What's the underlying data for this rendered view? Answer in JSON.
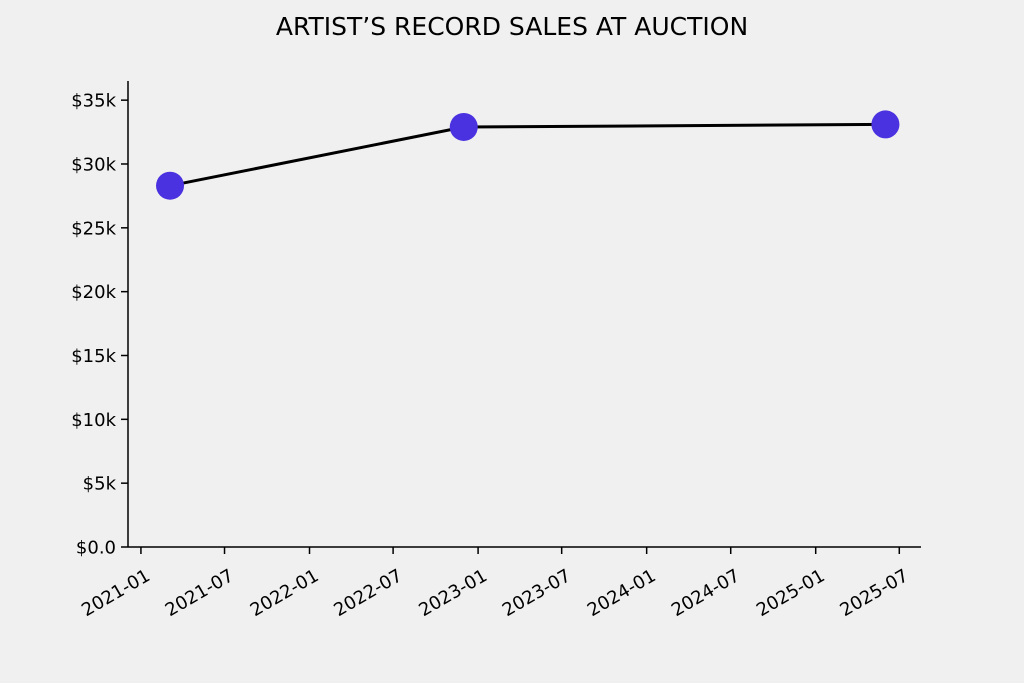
{
  "chart_data": {
    "type": "line",
    "title": "ARTIST’S RECORD SALES AT AUCTION",
    "xlabel": "",
    "ylabel": "",
    "x_ticks": [
      "2021-01",
      "2021-07",
      "2022-01",
      "2022-07",
      "2023-01",
      "2023-07",
      "2024-01",
      "2024-07",
      "2025-01",
      "2025-07"
    ],
    "y_ticks": [
      "$0.0",
      "$5k",
      "$10k",
      "$15k",
      "$20k",
      "$25k",
      "$30k",
      "$35k"
    ],
    "ylim": [
      0,
      36500
    ],
    "xlim": [
      "2020-12-04",
      "2025-08-17"
    ],
    "grid": false,
    "series": [
      {
        "points": [
          {
            "x": "2021-03-05",
            "y": 28300
          },
          {
            "x": "2022-12-01",
            "y": 32900
          },
          {
            "x": "2025-06-01",
            "y": 33100
          }
        ],
        "line_color": "#000000",
        "marker_color": "#4a32e0"
      }
    ]
  }
}
